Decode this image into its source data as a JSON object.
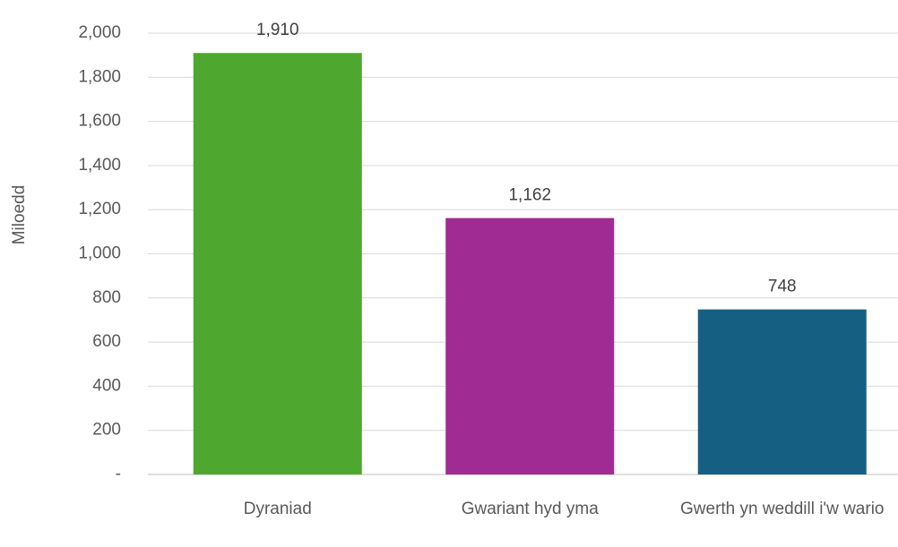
{
  "chart_data": {
    "type": "bar",
    "y_label": "Miloedd",
    "categories": [
      "Dyraniad",
      "Gwariant hyd yma",
      "Gwerth yn weddill i'w wario"
    ],
    "values": [
      1910,
      1162,
      748
    ],
    "value_labels": [
      "1,910",
      "1,162",
      "748"
    ],
    "colors": [
      "#4ea72e",
      "#a02b93",
      "#156082"
    ],
    "ylim": [
      0,
      2000
    ],
    "yticks": [
      {
        "value": 0,
        "label": "-"
      },
      200,
      400,
      600,
      800,
      {
        "value": 1000,
        "label": "1,000"
      },
      {
        "value": 1200,
        "label": "1,200"
      },
      {
        "value": 1400,
        "label": "1,400"
      },
      {
        "value": 1600,
        "label": "1,600"
      },
      {
        "value": 1800,
        "label": "1,800"
      },
      {
        "value": 2000,
        "label": "2,000"
      }
    ],
    "grid": true
  }
}
